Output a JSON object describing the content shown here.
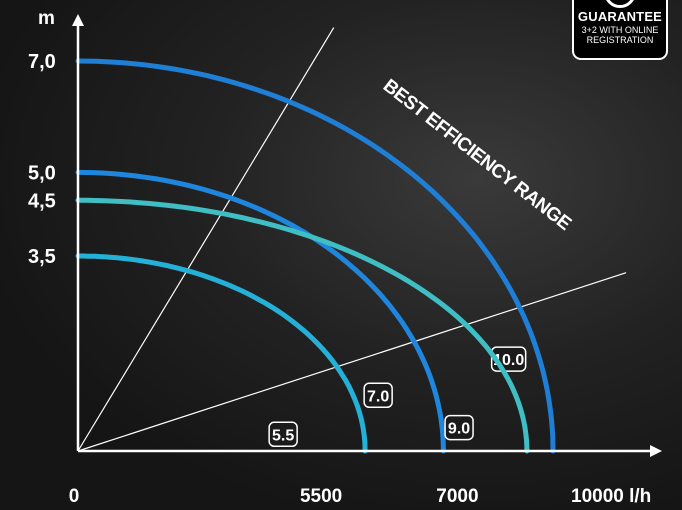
{
  "chart_data": {
    "type": "line",
    "ylabel": "m",
    "xlabel": "l/h",
    "xlim": [
      0,
      10500
    ],
    "ylim": [
      0,
      7.6
    ],
    "y_ticks": [
      "7,0",
      "5,0",
      "4,5",
      "3,5"
    ],
    "y_tick_values": [
      7.0,
      5.0,
      4.5,
      3.5
    ],
    "x_ticks": [
      "0",
      "5500",
      "7000",
      "10000 l/h"
    ],
    "x_tick_values": [
      0,
      5500,
      7000,
      10000
    ],
    "series": [
      {
        "name": "10.0",
        "max_head": 7.0,
        "max_flow": 9100,
        "color": "#1f7fd6"
      },
      {
        "name": "7.0",
        "max_head": 5.0,
        "max_flow": 7000,
        "color": "#1e86dd"
      },
      {
        "name": "9.0",
        "max_head": 4.5,
        "max_flow": 8600,
        "color": "#3fbec4"
      },
      {
        "name": "5.5",
        "max_head": 3.5,
        "max_flow": 5500,
        "color": "#25b0d8"
      }
    ],
    "range_lines": [
      {
        "to_flow": 4900,
        "to_head": 7.6
      },
      {
        "to_flow": 10500,
        "to_head": 3.2
      }
    ],
    "annotation": "BEST EFFICIENCY RANGE",
    "grid": false,
    "legend": "inline curve labels"
  },
  "badge": {
    "title": "GUARANTEE",
    "subtitle": "3+2 WITH ONLINE\nREGISTRATION"
  }
}
